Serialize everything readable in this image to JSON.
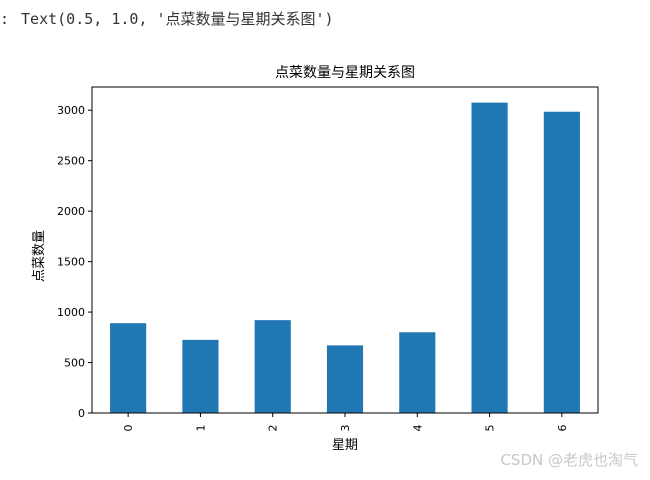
{
  "output": {
    "prefix": ":",
    "text": "Text(0.5, 1.0, '点菜数量与星期关系图')"
  },
  "watermark": {
    "text": "CSDN @老虎也淘气"
  },
  "chart_data": {
    "type": "bar",
    "title": "点菜数量与星期关系图",
    "xlabel": "星期",
    "ylabel": "点菜数量",
    "categories": [
      "0",
      "1",
      "2",
      "3",
      "4",
      "5",
      "6"
    ],
    "values": [
      890,
      725,
      920,
      670,
      800,
      3075,
      2985
    ],
    "ylim": [
      0,
      3230
    ],
    "yticks": [
      0,
      500,
      1000,
      1500,
      2000,
      2500,
      3000
    ],
    "bar_color": "#1f77b4",
    "grid": false,
    "legend": "none",
    "xtick_rotation": "vertical"
  }
}
